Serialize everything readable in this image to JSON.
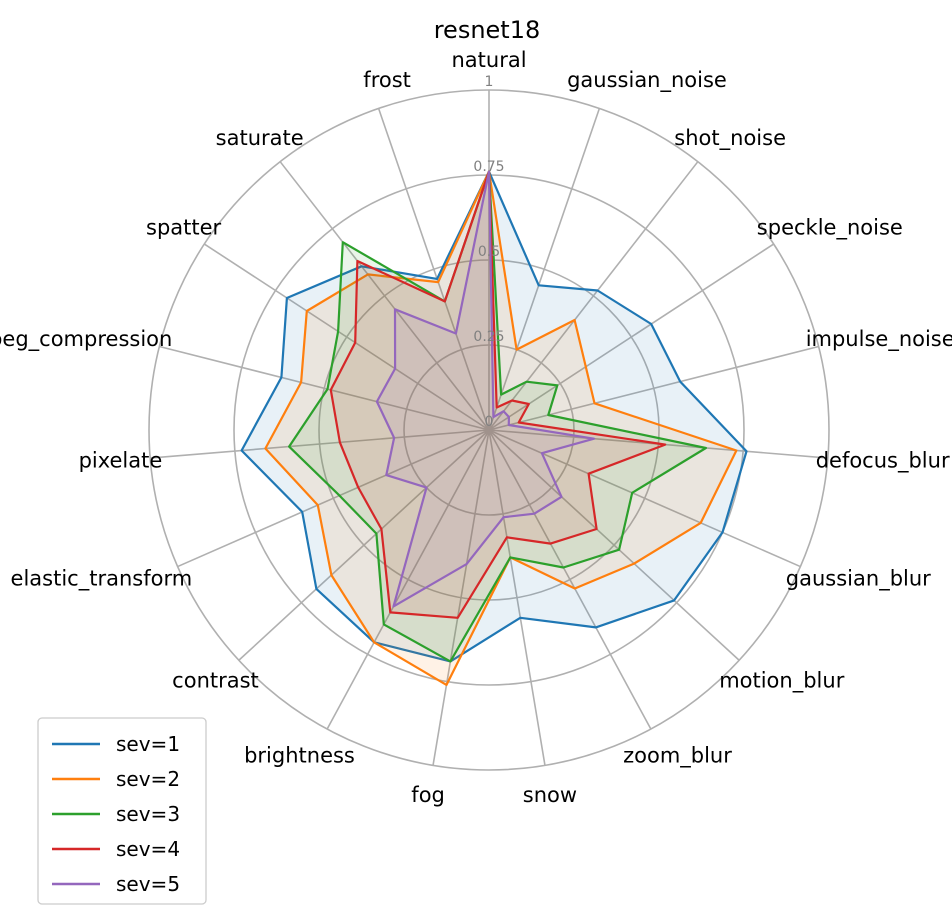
{
  "chart_data": {
    "type": "radar",
    "title": "resnet18",
    "categories": [
      "natural",
      "gaussian_noise",
      "shot_noise",
      "speckle_noise",
      "impulse_noise",
      "defocus_blur",
      "gaussian_blur",
      "motion_blur",
      "zoom_blur",
      "snow",
      "fog",
      "brightness",
      "contrast",
      "elastic_transform",
      "pixelate",
      "jpeg_compression",
      "spatter",
      "saturate",
      "frost"
    ],
    "r_ticks": [
      0,
      0.25,
      0.5,
      0.75,
      1
    ],
    "r_tick_labels": [
      "0",
      "0.25",
      "0.5",
      "0.75",
      "1"
    ],
    "rlim": [
      0,
      1
    ],
    "grid": true,
    "legend_position": "lower-left",
    "series": [
      {
        "name": "sev=1",
        "color": "#1f77b4",
        "values": [
          0.76,
          0.45,
          0.52,
          0.57,
          0.58,
          0.76,
          0.75,
          0.74,
          0.66,
          0.56,
          0.69,
          0.71,
          0.69,
          0.6,
          0.73,
          0.63,
          0.71,
          0.61,
          0.47
        ]
      },
      {
        "name": "sev=2",
        "color": "#ff7f0e",
        "values": [
          0.76,
          0.25,
          0.41,
          0.34,
          0.32,
          0.73,
          0.68,
          0.58,
          0.53,
          0.38,
          0.76,
          0.71,
          0.63,
          0.55,
          0.66,
          0.57,
          0.64,
          0.58,
          0.46
        ]
      },
      {
        "name": "sev=3",
        "color": "#1f77b4",
        "values": [
          0.76,
          0.11,
          0.18,
          0.24,
          0.18,
          0.64,
          0.46,
          0.52,
          0.46,
          0.38,
          0.69,
          0.65,
          0.45,
          0.48,
          0.59,
          0.49,
          0.53,
          0.7,
          0.4
        ]
      },
      {
        "name": "sev=4",
        "color": "#d62728",
        "values": [
          0.76,
          0.07,
          0.11,
          0.14,
          0.09,
          0.52,
          0.32,
          0.43,
          0.38,
          0.32,
          0.56,
          0.61,
          0.43,
          0.42,
          0.44,
          0.48,
          0.47,
          0.63,
          0.4
        ]
      },
      {
        "name": "sev=5",
        "color": "#9467bd",
        "values": [
          0.76,
          0.04,
          0.07,
          0.07,
          0.06,
          0.31,
          0.17,
          0.29,
          0.28,
          0.26,
          0.4,
          0.59,
          0.25,
          0.33,
          0.28,
          0.34,
          0.33,
          0.45,
          0.3
        ]
      }
    ]
  },
  "legend_title": ""
}
